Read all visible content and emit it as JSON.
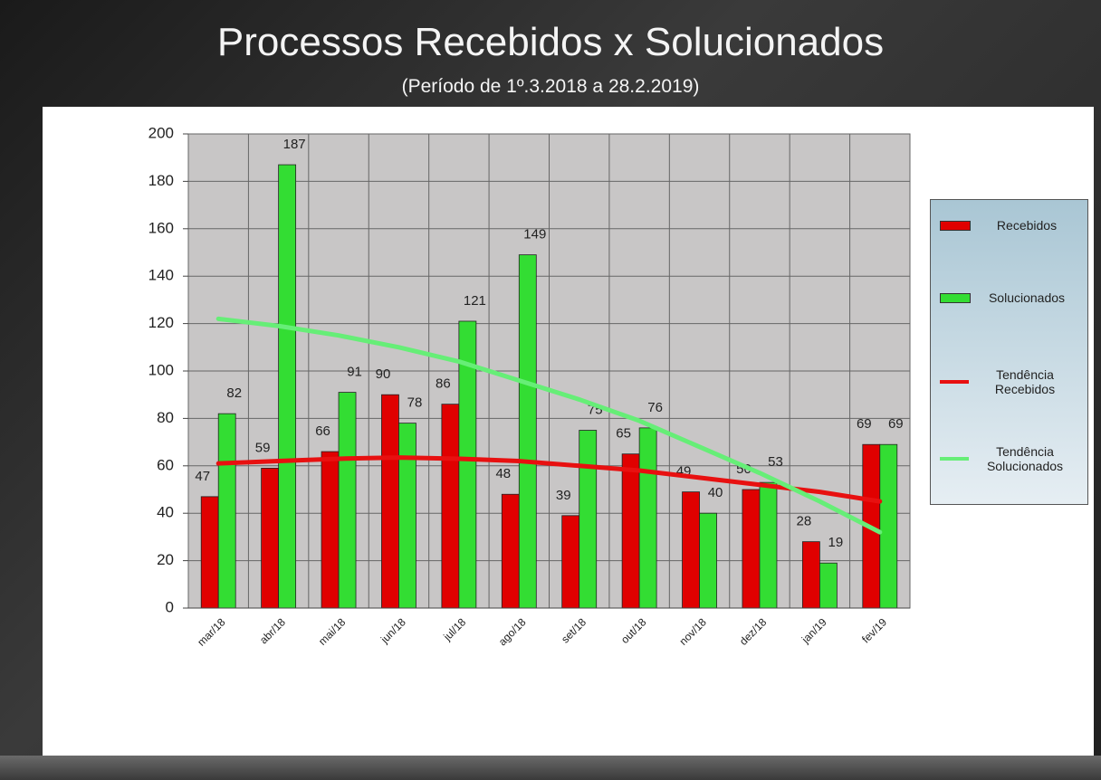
{
  "chart_data": {
    "type": "bar",
    "title": "Processos Recebidos x Solucionados",
    "subtitle": "(Período de 1º.3.2018  a  28.2.2019)",
    "categories": [
      "mar/18",
      "abr/18",
      "mai/18",
      "jun/18",
      "jul/18",
      "ago/18",
      "set/18",
      "out/18",
      "nov/18",
      "dez/18",
      "jan/19",
      "fev/19"
    ],
    "series": [
      {
        "name": "Recebidos",
        "type": "bar",
        "color": "#e00000",
        "values": [
          47,
          59,
          66,
          90,
          86,
          48,
          39,
          65,
          49,
          50,
          28,
          69
        ]
      },
      {
        "name": "Solucionados",
        "type": "bar",
        "color": "#33dd33",
        "values": [
          82,
          187,
          91,
          78,
          121,
          149,
          75,
          76,
          40,
          53,
          19,
          69
        ]
      },
      {
        "name": "Tendência Recebidos",
        "type": "line",
        "color": "#e81010",
        "values": [
          61,
          62,
          63,
          63.5,
          63,
          62,
          60,
          58,
          55,
          52,
          49,
          45
        ]
      },
      {
        "name": "Tendência Solucionados",
        "type": "line",
        "color": "#66ee77",
        "values": [
          122,
          119,
          115,
          110,
          104,
          96,
          88,
          79,
          68,
          57,
          45,
          32
        ]
      }
    ],
    "ylim": [
      0,
      200
    ],
    "yticks": [
      0,
      20,
      40,
      60,
      80,
      100,
      120,
      140,
      160,
      180,
      200
    ],
    "grid": true,
    "legend": "right"
  }
}
